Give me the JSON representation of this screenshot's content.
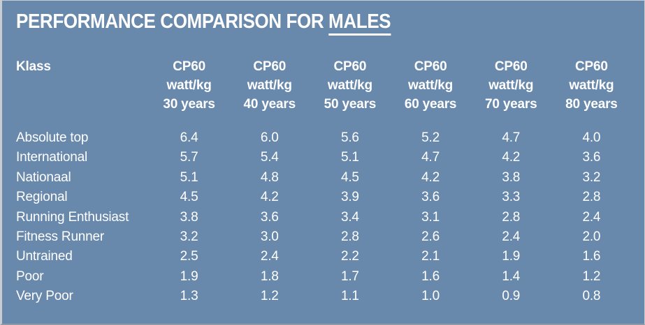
{
  "title": {
    "prefix": "PERFORMANCE COMPARISON FOR ",
    "underlined": "MALES"
  },
  "colors": {
    "background": "#6888ac",
    "text": "#ffffff",
    "title_underline": "#ffffff",
    "border": "#c9cdd2"
  },
  "table": {
    "class_column_header": "Klass",
    "column_headers": [
      "CP60\nwatt/kg\n30 years",
      "CP60\nwatt/kg\n40 years",
      "CP60\nwatt/kg\n50 years",
      "CP60\nwatt/kg\n60 years",
      "CP60\nwatt/kg\n70 years",
      "CP60\nwatt/kg\n80 years"
    ],
    "rows": [
      {
        "label": "Absolute top",
        "values": [
          "6.4",
          "6.0",
          "5.6",
          "5.2",
          "4.7",
          "4.0"
        ]
      },
      {
        "label": "International",
        "values": [
          "5.7",
          "5.4",
          "5.1",
          "4.7",
          "4.2",
          "3.6"
        ]
      },
      {
        "label": "Nationaal",
        "values": [
          "5.1",
          "4.8",
          "4.5",
          "4.2",
          "3.8",
          "3.2"
        ]
      },
      {
        "label": "Regional",
        "values": [
          "4.5",
          "4.2",
          "3.9",
          "3.6",
          "3.3",
          "2.8"
        ]
      },
      {
        "label": "Running Enthusiast",
        "values": [
          "3.8",
          "3.6",
          "3.4",
          "3.1",
          "2.8",
          "2.4"
        ]
      },
      {
        "label": "Fitness Runner",
        "values": [
          "3.2",
          "3.0",
          "2.8",
          "2.6",
          "2.4",
          "2.0"
        ]
      },
      {
        "label": "Untrained",
        "values": [
          "2.5",
          "2.4",
          "2.2",
          "2.1",
          "1.9",
          "1.6"
        ]
      },
      {
        "label": "Poor",
        "values": [
          "1.9",
          "1.8",
          "1.7",
          "1.6",
          "1.4",
          "1.2"
        ]
      },
      {
        "label": "Very Poor",
        "values": [
          "1.3",
          "1.2",
          "1.1",
          "1.0",
          "0.9",
          "0.8"
        ]
      }
    ]
  },
  "chart_data": {
    "type": "table",
    "title": "PERFORMANCE COMPARISON FOR MALES",
    "columns": [
      "Klass",
      "CP60 watt/kg 30 years",
      "CP60 watt/kg 40 years",
      "CP60 watt/kg 50 years",
      "CP60 watt/kg 60 years",
      "CP60 watt/kg 70 years",
      "CP60 watt/kg 80 years"
    ],
    "rows": [
      [
        "Absolute top",
        6.4,
        6.0,
        5.6,
        5.2,
        4.7,
        4.0
      ],
      [
        "International",
        5.7,
        5.4,
        5.1,
        4.7,
        4.2,
        3.6
      ],
      [
        "Nationaal",
        5.1,
        4.8,
        4.5,
        4.2,
        3.8,
        3.2
      ],
      [
        "Regional",
        4.5,
        4.2,
        3.9,
        3.6,
        3.3,
        2.8
      ],
      [
        "Running Enthusiast",
        3.8,
        3.6,
        3.4,
        3.1,
        2.8,
        2.4
      ],
      [
        "Fitness Runner",
        3.2,
        3.0,
        2.8,
        2.6,
        2.4,
        2.0
      ],
      [
        "Untrained",
        2.5,
        2.4,
        2.2,
        2.1,
        1.9,
        1.6
      ],
      [
        "Poor",
        1.9,
        1.8,
        1.7,
        1.6,
        1.4,
        1.2
      ],
      [
        "Very Poor",
        1.3,
        1.2,
        1.1,
        1.0,
        0.9,
        0.8
      ]
    ],
    "units": "watt/kg",
    "value_range": [
      0.8,
      6.4
    ]
  }
}
